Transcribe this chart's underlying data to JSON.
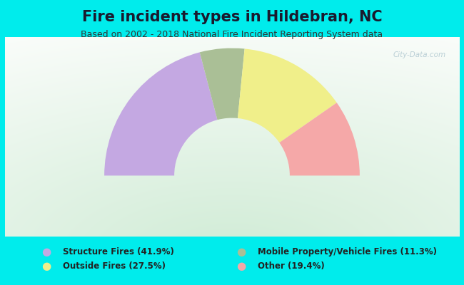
{
  "title": "Fire incident types in Hildebran, NC",
  "subtitle": "Based on 2002 - 2018 National Fire Incident Reporting System data",
  "background_outer": "#00ecec",
  "segments": [
    {
      "label": "Structure Fires (41.9%)",
      "value": 41.9,
      "color": "#c4a8e2"
    },
    {
      "label": "Mobile Property/Vehicle Fires (11.3%)",
      "value": 11.3,
      "color": "#aabf96"
    },
    {
      "label": "Outside Fires (27.5%)",
      "value": 27.5,
      "color": "#f0ef8a"
    },
    {
      "label": "Other (19.4%)",
      "value": 19.4,
      "color": "#f5a8a8"
    }
  ],
  "legend_colors": [
    "#c4a8e2",
    "#aabf96",
    "#f0ef8a",
    "#f5a8a8"
  ],
  "legend_labels_left": [
    "Structure Fires (41.9%)",
    "Outside Fires (27.5%)"
  ],
  "legend_labels_right": [
    "Mobile Property/Vehicle Fires (11.3%)",
    "Other (19.4%)"
  ],
  "legend_colors_left": [
    "#c4a8e2",
    "#f0ef8a"
  ],
  "legend_colors_right": [
    "#aabf96",
    "#f5a8a8"
  ],
  "title_fontsize": 15,
  "subtitle_fontsize": 9,
  "watermark": "City-Data.com"
}
